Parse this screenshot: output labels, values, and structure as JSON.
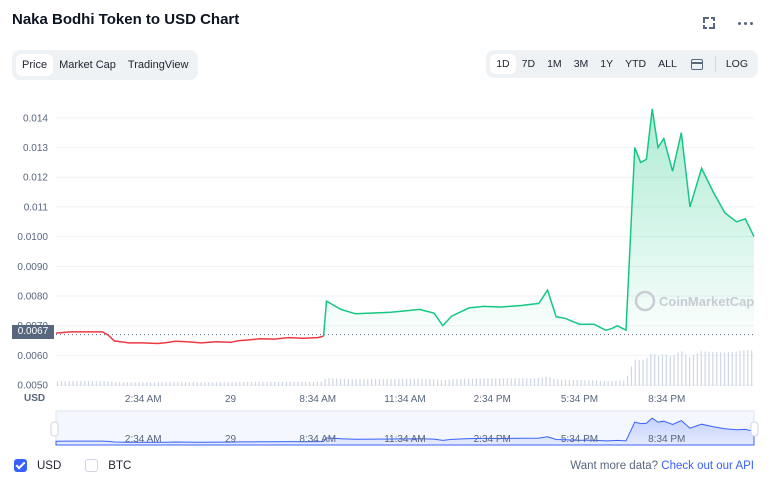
{
  "header": {
    "title": "Naka Bodhi Token to USD Chart",
    "expand_icon": "expand-icon",
    "more_icon": "more-icon"
  },
  "tabs": [
    {
      "label": "Price",
      "active": true
    },
    {
      "label": "Market Cap",
      "active": false
    },
    {
      "label": "TradingView",
      "active": false
    }
  ],
  "ranges": [
    {
      "label": "1D",
      "active": true
    },
    {
      "label": "7D",
      "active": false
    },
    {
      "label": "1M",
      "active": false
    },
    {
      "label": "3M",
      "active": false
    },
    {
      "label": "1Y",
      "active": false
    },
    {
      "label": "YTD",
      "active": false
    },
    {
      "label": "ALL",
      "active": false
    }
  ],
  "log_label": "LOG",
  "calendar_icon": "calendar-icon",
  "current_price_tag": "0.0067",
  "axis_currency": "USD",
  "watermark": "CoinMarketCap",
  "footer": {
    "usd_label": "USD",
    "btc_label": "BTC",
    "promo_text": "Want more data?",
    "promo_link": "Check out our API"
  },
  "colors": {
    "up": "#16c784",
    "down": "#ea3943",
    "accent": "#3861fb"
  },
  "chart_data": {
    "type": "line",
    "xlabel": "",
    "ylabel": "",
    "y_ticks": [
      "0.014",
      "0.013",
      "0.012",
      "0.011",
      "0.0100",
      "0.0090",
      "0.0080",
      "0.0070",
      "0.0060",
      "0.0050"
    ],
    "y_tick_values": [
      0.014,
      0.013,
      0.012,
      0.011,
      0.01,
      0.009,
      0.008,
      0.007,
      0.006,
      0.005
    ],
    "ylim": [
      0.00497,
      0.0146
    ],
    "xlim": [
      0,
      24
    ],
    "x_ticks": [
      {
        "label": "2:34 AM",
        "x": 3
      },
      {
        "label": "29",
        "x": 6
      },
      {
        "label": "8:34 AM",
        "x": 9
      },
      {
        "label": "11:34 AM",
        "x": 12
      },
      {
        "label": "2:34 PM",
        "x": 15
      },
      {
        "label": "5:34 PM",
        "x": 18
      },
      {
        "label": "8:34 PM",
        "x": 21
      }
    ],
    "reference_price": 0.0067,
    "series": [
      {
        "x": [
          0,
          0.5,
          1,
          1.6,
          1.8,
          2.0,
          2.5,
          3.0,
          3.5,
          3.8,
          4.1,
          4.5,
          5.0,
          5.5,
          6.0,
          6.3,
          6.6,
          7.0,
          7.5,
          8.0,
          8.5,
          9.0,
          9.2
        ],
        "y": [
          0.00675,
          0.00679,
          0.00679,
          0.00679,
          0.00668,
          0.00649,
          0.00642,
          0.00642,
          0.0064,
          0.00643,
          0.00648,
          0.00646,
          0.00642,
          0.00646,
          0.00644,
          0.0065,
          0.00652,
          0.00656,
          0.00655,
          0.0066,
          0.00658,
          0.0066,
          0.00665
        ]
      },
      {
        "x": [
          9.2,
          9.3,
          9.8,
          10.3,
          11.0,
          11.5,
          12.0,
          12.5,
          13.0,
          13.3,
          13.6,
          14.2,
          14.7,
          15.3,
          16.0,
          16.6,
          16.9,
          17.2,
          17.5,
          18.0,
          18.5,
          18.9,
          19.1,
          19.3,
          19.6,
          19.8,
          19.9,
          20.1,
          20.3,
          20.5,
          20.7,
          20.9,
          21.2,
          21.5,
          21.8,
          22.2,
          22.6,
          23.0,
          23.4,
          23.7,
          24.0
        ],
        "y": [
          0.00665,
          0.00783,
          0.00755,
          0.0074,
          0.00743,
          0.00745,
          0.0075,
          0.00755,
          0.00742,
          0.007,
          0.00732,
          0.0076,
          0.00765,
          0.00763,
          0.00768,
          0.00775,
          0.0082,
          0.0073,
          0.00725,
          0.00705,
          0.00705,
          0.00685,
          0.0069,
          0.007,
          0.00685,
          0.011,
          0.013,
          0.0125,
          0.0126,
          0.0143,
          0.013,
          0.0133,
          0.0122,
          0.0135,
          0.011,
          0.0123,
          0.0115,
          0.0108,
          0.0105,
          0.0106,
          0.01
        ]
      }
    ]
  }
}
